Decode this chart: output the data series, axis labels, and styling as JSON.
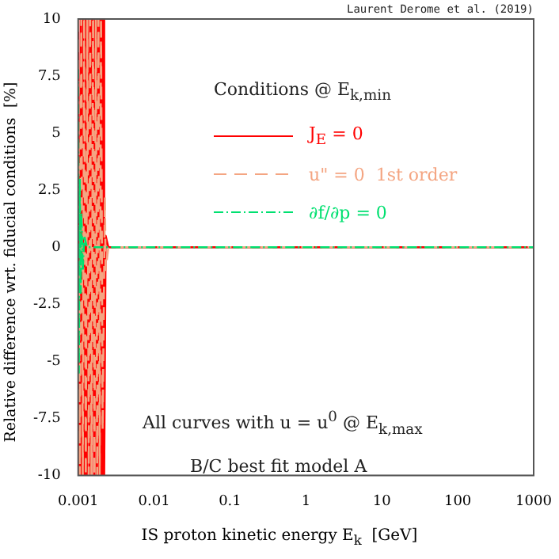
{
  "chart_data": {
    "type": "line",
    "xlabel": "IS proton kinetic energy E$_{k}$  [GeV]",
    "ylabel": "Relative difference wrt. fiducial conditions  [%]",
    "legend_title": "Conditions @ E$_{k,min}$",
    "annotations": [
      "Laurent Derome et al. (2019)",
      "All curves with u = u$^{0}$ @ E$_{k,max}$",
      "B/C best fit model A"
    ],
    "log": "x",
    "xlim": [
      0.001,
      1000
    ],
    "xticks": [
      0.001,
      0.01,
      0.1,
      1,
      10,
      100,
      1000
    ],
    "ylim": [
      -10,
      10
    ],
    "yticks": [
      -10,
      -7.5,
      -5,
      -2.5,
      0,
      2.5,
      5,
      7.5,
      10
    ],
    "grid": false,
    "legend": "top right",
    "marker": "none",
    "ref_lines": [
      {
        "axis": "y",
        "value": 0,
        "color": "#000000"
      }
    ],
    "series": [
      {
        "name": "J$_{E}$ = 0",
        "color": "#ff0000",
        "line_style": "solid",
        "x": [
          0.001,
          0.00104,
          0.00108,
          0.00112,
          0.00116,
          0.0012,
          0.00125,
          0.0013,
          0.00135,
          0.0014,
          0.00145,
          0.0015,
          0.00156,
          0.00162,
          0.00168,
          0.00174,
          0.0018,
          0.00186,
          0.00192,
          0.00198,
          0.00204,
          0.0021,
          0.00216,
          0.0022,
          0.0023,
          0.0025,
          1000
        ],
        "values": [
          10,
          -10,
          10,
          -10,
          10,
          -10,
          10,
          -10,
          10,
          -10,
          10,
          -10,
          10,
          -10,
          10,
          -10,
          10,
          -10,
          10,
          -10,
          10,
          -10,
          10,
          -10,
          0.5,
          0,
          0
        ]
      },
      {
        "name": "u\" = 0  1st order",
        "color": "#f4a582",
        "line_style": "dashed",
        "x": [
          0.001,
          0.00105,
          0.0011,
          0.00115,
          0.0012,
          0.00126,
          0.00132,
          0.00138,
          0.00144,
          0.0015,
          0.00157,
          0.00164,
          0.00171,
          0.00178,
          0.00185,
          0.00192,
          0.002,
          0.0021,
          0.00225,
          0.0023,
          0.0025,
          1000
        ],
        "values": [
          10,
          -10,
          10,
          -10,
          10,
          -10,
          10,
          -10,
          10,
          -10,
          10,
          -10,
          10,
          -10,
          10,
          -10,
          10,
          -8,
          2.2,
          -1,
          0,
          0
        ]
      },
      {
        "name": "∂f/∂p = 0",
        "color": "#00e070",
        "line_style": "dotted",
        "x": [
          0.001,
          0.00102,
          0.00105,
          0.00108,
          0.0011,
          0.00115,
          0.0012,
          0.0013,
          1000
        ],
        "values": [
          7.8,
          -5.5,
          3,
          -2,
          1.5,
          -1,
          0.5,
          0,
          0
        ]
      }
    ]
  }
}
